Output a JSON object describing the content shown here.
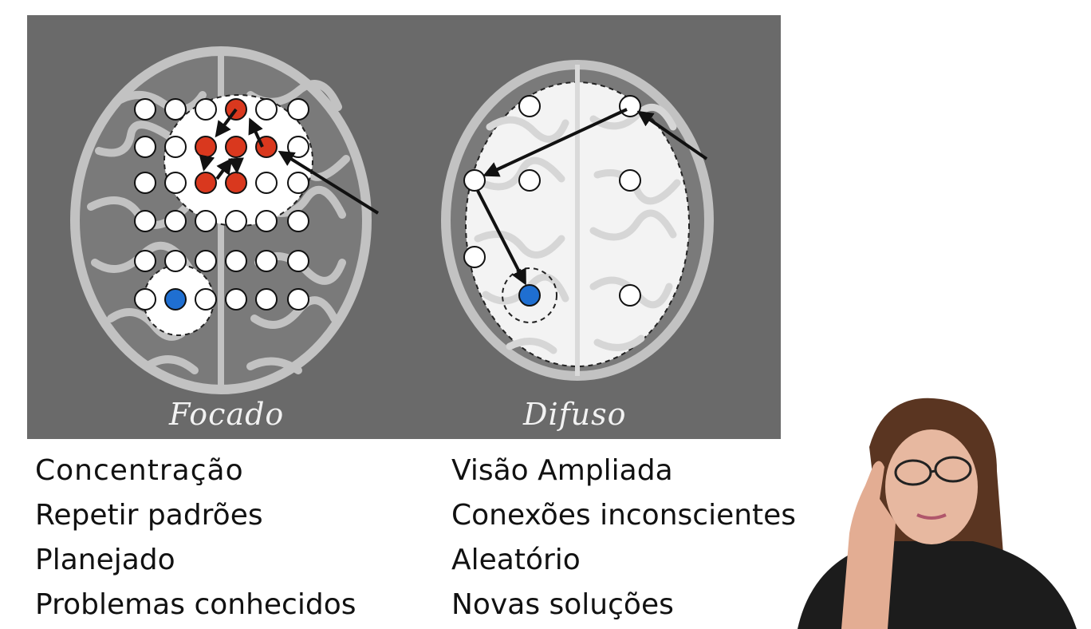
{
  "focused_mode": {
    "caption": "Focado",
    "traits": [
      "Concentração",
      "Repetir padrões",
      "Planejado",
      "Problemas conhecidos"
    ]
  },
  "diffuse_mode": {
    "caption": "Difuso",
    "traits": [
      "Visão Ampliada",
      "Conexões inconscientes",
      "Aleatório",
      "Novas soluções"
    ]
  },
  "colors": {
    "panel": "#6a6a6a",
    "brain_outline": "#bdbdbd",
    "brain_fill": "#f3f3f3",
    "node_active": "#d9381e",
    "node_target": "#1f6fd1",
    "node_idle": "#ffffff"
  }
}
